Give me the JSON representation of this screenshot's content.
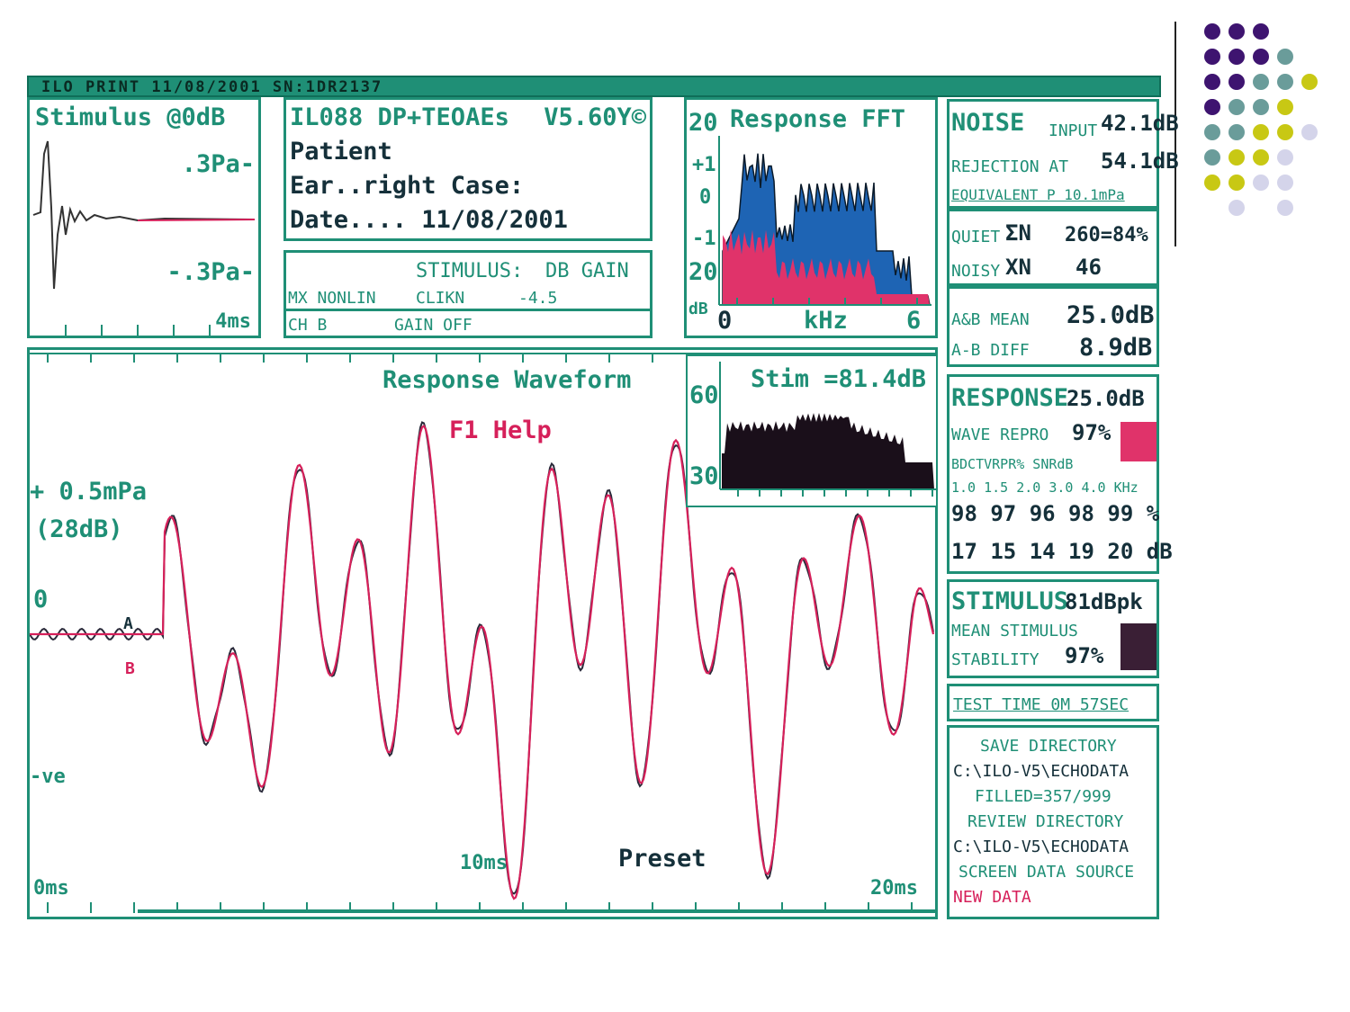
{
  "title_bar": "ILO PRINT 11/08/2001 SN:1DR2137",
  "stimulus_panel": {
    "title": "Stimulus @0dB",
    "pos_label": ".3Pa-",
    "neg_label": "-.3Pa-",
    "time_label": "4ms"
  },
  "info_panel": {
    "model": "IL088 DP+TEOAEs",
    "version": "V5.60Y©",
    "patient_label": "Patient",
    "ear_label": "Ear..right Case:",
    "date_label": "Date.... 11/08/2001"
  },
  "settings_panel": {
    "stimulus_header": "STIMULUS:",
    "gain_header": "DB GAIN",
    "mode": "MX NONLIN",
    "stimulus_type": "CLIKN",
    "gain_value": "-4.5",
    "channel": "CH B",
    "gain_state": "GAIN OFF"
  },
  "fft_panel": {
    "title": "Response FFT",
    "y_top": "20",
    "y_plus": "+1",
    "y_zero": "0",
    "y_minus": "-1",
    "y_bottom": "20",
    "y_unit": "dB",
    "x_start": "0",
    "x_unit": "kHz",
    "x_end": "6"
  },
  "waveform_panel": {
    "title": "Response Waveform",
    "help": "F1 Help",
    "scale": "+ 0.5mPa",
    "scale_db": "(28dB)",
    "zero": "0",
    "neg": "-ve",
    "channel_a": "A",
    "channel_b": "B",
    "x_start": "0ms",
    "x_mid": "10ms",
    "x_end": "20ms",
    "preset": "Preset"
  },
  "stim_spectrum": {
    "title": "Stim =81.4dB",
    "y_top": "60",
    "y_bottom": "30"
  },
  "noise_panel": {
    "row1_big": "NOISE",
    "row1_small": "INPUT",
    "row1_value": "42.1dB",
    "row2_label": "REJECTION AT",
    "row2_value": "54.1dB",
    "row3": "EQUIVALENT P 10.1mPa"
  },
  "quiet_panel": {
    "quiet_label": "QUIET",
    "quiet_sym": "ΣN",
    "quiet_value": "260=84%",
    "noisy_label": "NOISY",
    "noisy_sym": "XN",
    "noisy_value": "46"
  },
  "ab_panel": {
    "mean_label": "A&B MEAN",
    "mean_value": "25.0dB",
    "diff_label": "A-B DIFF",
    "diff_value": "8.9dB"
  },
  "response_panel": {
    "title": "RESPONSE",
    "value": "25.0dB",
    "repro_label": "WAVE REPRO",
    "repro_value": "97%",
    "band_header": "BDCTVRPR% SNRdB",
    "freqs": "1.0 1.5 2.0 3.0 4.0 KHz",
    "repro_row": "98 97 96 98 99 %",
    "snr_row": "17 15 14 19 20 dB",
    "indicator_color": "#e0336a"
  },
  "stimulus_summary": {
    "title": "STIMULUS",
    "value": "81dBpk",
    "mean_label": "MEAN STIMULUS",
    "stability_label": "STABILITY",
    "stability_value": "97%",
    "indicator_color": "#3a1f35"
  },
  "test_time": "TEST TIME  0M 57SEC",
  "directory_panel": {
    "save_label": "SAVE DIRECTORY",
    "save_path": "C:\\ILO-V5\\ECHODATA",
    "filled": "FILLED=357/999",
    "review_label": "REVIEW DIRECTORY",
    "review_path": "C:\\ILO-V5\\ECHODATA",
    "source_label": "SCREEN DATA SOURCE",
    "source_value": "NEW DATA"
  },
  "colors": {
    "frame": "#1f8f76",
    "channel_a": "#2a2a3a",
    "channel_b": "#d6205a",
    "fft_response": "#1e64b4",
    "fft_noise": "#e0336a",
    "stim_spectrum": "#1a0f1a",
    "dot_purple": "#3e1470",
    "dot_teal": "#6a9c9a",
    "dot_yellow": "#c8c814",
    "dot_lavender": "#d4d4ea"
  }
}
